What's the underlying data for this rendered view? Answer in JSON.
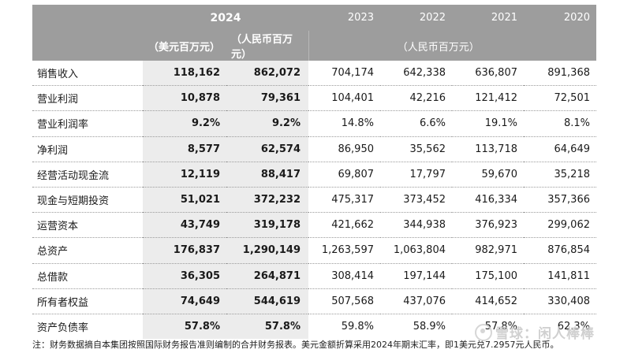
{
  "header": {
    "year_current": "2024",
    "years_prev": [
      "2023",
      "2022",
      "2021",
      "2020"
    ],
    "unit_usd": "（美元百万元）",
    "unit_rmb": "（人民币百万元）",
    "unit_prev": "（人民币百万元）"
  },
  "rows": [
    {
      "label": "销售收入",
      "usd": "118,162",
      "rmb": "862,072",
      "prev": [
        "704,174",
        "642,338",
        "636,807",
        "891,368"
      ]
    },
    {
      "label": "营业利润",
      "usd": "10,878",
      "rmb": "79,361",
      "prev": [
        "104,401",
        "42,216",
        "121,412",
        "72,501"
      ]
    },
    {
      "label": "营业利润率",
      "usd": "9.2%",
      "rmb": "9.2%",
      "prev": [
        "14.8%",
        "6.6%",
        "19.1%",
        "8.1%"
      ]
    },
    {
      "label": "净利润",
      "usd": "8,577",
      "rmb": "62,574",
      "prev": [
        "86,950",
        "35,562",
        "113,718",
        "64,649"
      ]
    },
    {
      "label": "经营活动现金流",
      "usd": "12,119",
      "rmb": "88,417",
      "prev": [
        "69,807",
        "17,797",
        "59,670",
        "35,218"
      ]
    },
    {
      "label": "现金与短期投资",
      "usd": "51,021",
      "rmb": "372,232",
      "prev": [
        "475,317",
        "373,452",
        "416,334",
        "357,366"
      ]
    },
    {
      "label": "运营资本",
      "usd": "43,749",
      "rmb": "319,178",
      "prev": [
        "421,662",
        "344,938",
        "376,923",
        "299,062"
      ]
    },
    {
      "label": "总资产",
      "usd": "176,837",
      "rmb": "1,290,149",
      "prev": [
        "1,263,597",
        "1,063,804",
        "982,971",
        "876,854"
      ]
    },
    {
      "label": "总借款",
      "usd": "36,305",
      "rmb": "264,871",
      "prev": [
        "308,414",
        "197,144",
        "175,100",
        "141,811"
      ]
    },
    {
      "label": "所有者权益",
      "usd": "74,649",
      "rmb": "544,619",
      "prev": [
        "507,568",
        "437,076",
        "414,652",
        "330,408"
      ]
    },
    {
      "label": "资产负债率",
      "usd": "57.8%",
      "rmb": "57.8%",
      "prev": [
        "59.8%",
        "58.9%",
        "57.8%",
        "62.3%"
      ]
    }
  ],
  "footnote": "注：财务数据摘自本集团按照国际财务报告准则编制的合并财务报表。美元金额折算采用2024年期末汇率，即1美元兑7.2957元人民币。",
  "watermark": {
    "text": "雪球：闲人棒棒",
    "icon": "snowball-logo-icon"
  },
  "colors": {
    "header_bg": "#9d9d9d",
    "highlight_bg": "#ececec",
    "divider": "#9a9a9a"
  }
}
